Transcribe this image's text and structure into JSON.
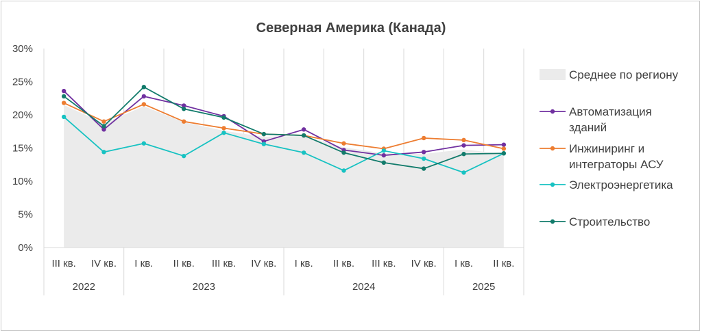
{
  "chart_data": {
    "type": "line",
    "title": "Северная Америка (Канада)",
    "ylim": [
      0,
      30
    ],
    "y_ticks": [
      "0%",
      "5%",
      "10%",
      "15%",
      "20%",
      "25%",
      "30%"
    ],
    "grid": "vertical",
    "legend_position": "right",
    "categories": [
      "III кв.",
      "IV кв.",
      "I кв.",
      "II кв.",
      "III кв.",
      "IV кв.",
      "I кв.",
      "II кв.",
      "III кв.",
      "IV кв.",
      "I кв.",
      "II кв."
    ],
    "year_groups": [
      {
        "label": "2022",
        "count": 2
      },
      {
        "label": "2023",
        "count": 4
      },
      {
        "label": "2024",
        "count": 4
      },
      {
        "label": "2025",
        "count": 2
      }
    ],
    "area": {
      "name": "Среднее по региону",
      "color": "#ebebeb",
      "values": [
        21.5,
        18.7,
        21.3,
        18.9,
        17.6,
        16.7,
        16.8,
        15.1,
        14.2,
        14.1,
        14.8,
        14.1
      ]
    },
    "series": [
      {
        "name": "Автоматизация зданий",
        "name_lines": [
          "Автоматизация",
          "зданий"
        ],
        "color": "#7030a0",
        "values": [
          23.6,
          17.8,
          22.8,
          21.4,
          19.8,
          16.0,
          17.8,
          14.7,
          13.9,
          14.4,
          15.4,
          15.5
        ]
      },
      {
        "name": "Инжиниринг и интеграторы АСУ",
        "name_lines": [
          "Инжиниринг и",
          "интеграторы АСУ"
        ],
        "color": "#ed7d31",
        "values": [
          21.8,
          19.0,
          21.6,
          19.0,
          18.0,
          17.1,
          16.9,
          15.7,
          14.9,
          16.5,
          16.2,
          14.9
        ]
      },
      {
        "name": "Электроэнергетика",
        "name_lines": [
          "Электроэнергетика"
        ],
        "color": "#17c2c2",
        "values": [
          19.7,
          14.4,
          15.7,
          13.8,
          17.3,
          15.6,
          14.3,
          11.6,
          14.6,
          13.4,
          11.3,
          14.2
        ]
      },
      {
        "name": "Строительство",
        "name_lines": [
          "Строительство"
        ],
        "color": "#127b6b",
        "values": [
          22.8,
          18.3,
          24.2,
          20.9,
          19.6,
          17.1,
          16.9,
          14.3,
          12.8,
          11.9,
          14.1,
          14.2
        ]
      }
    ]
  }
}
